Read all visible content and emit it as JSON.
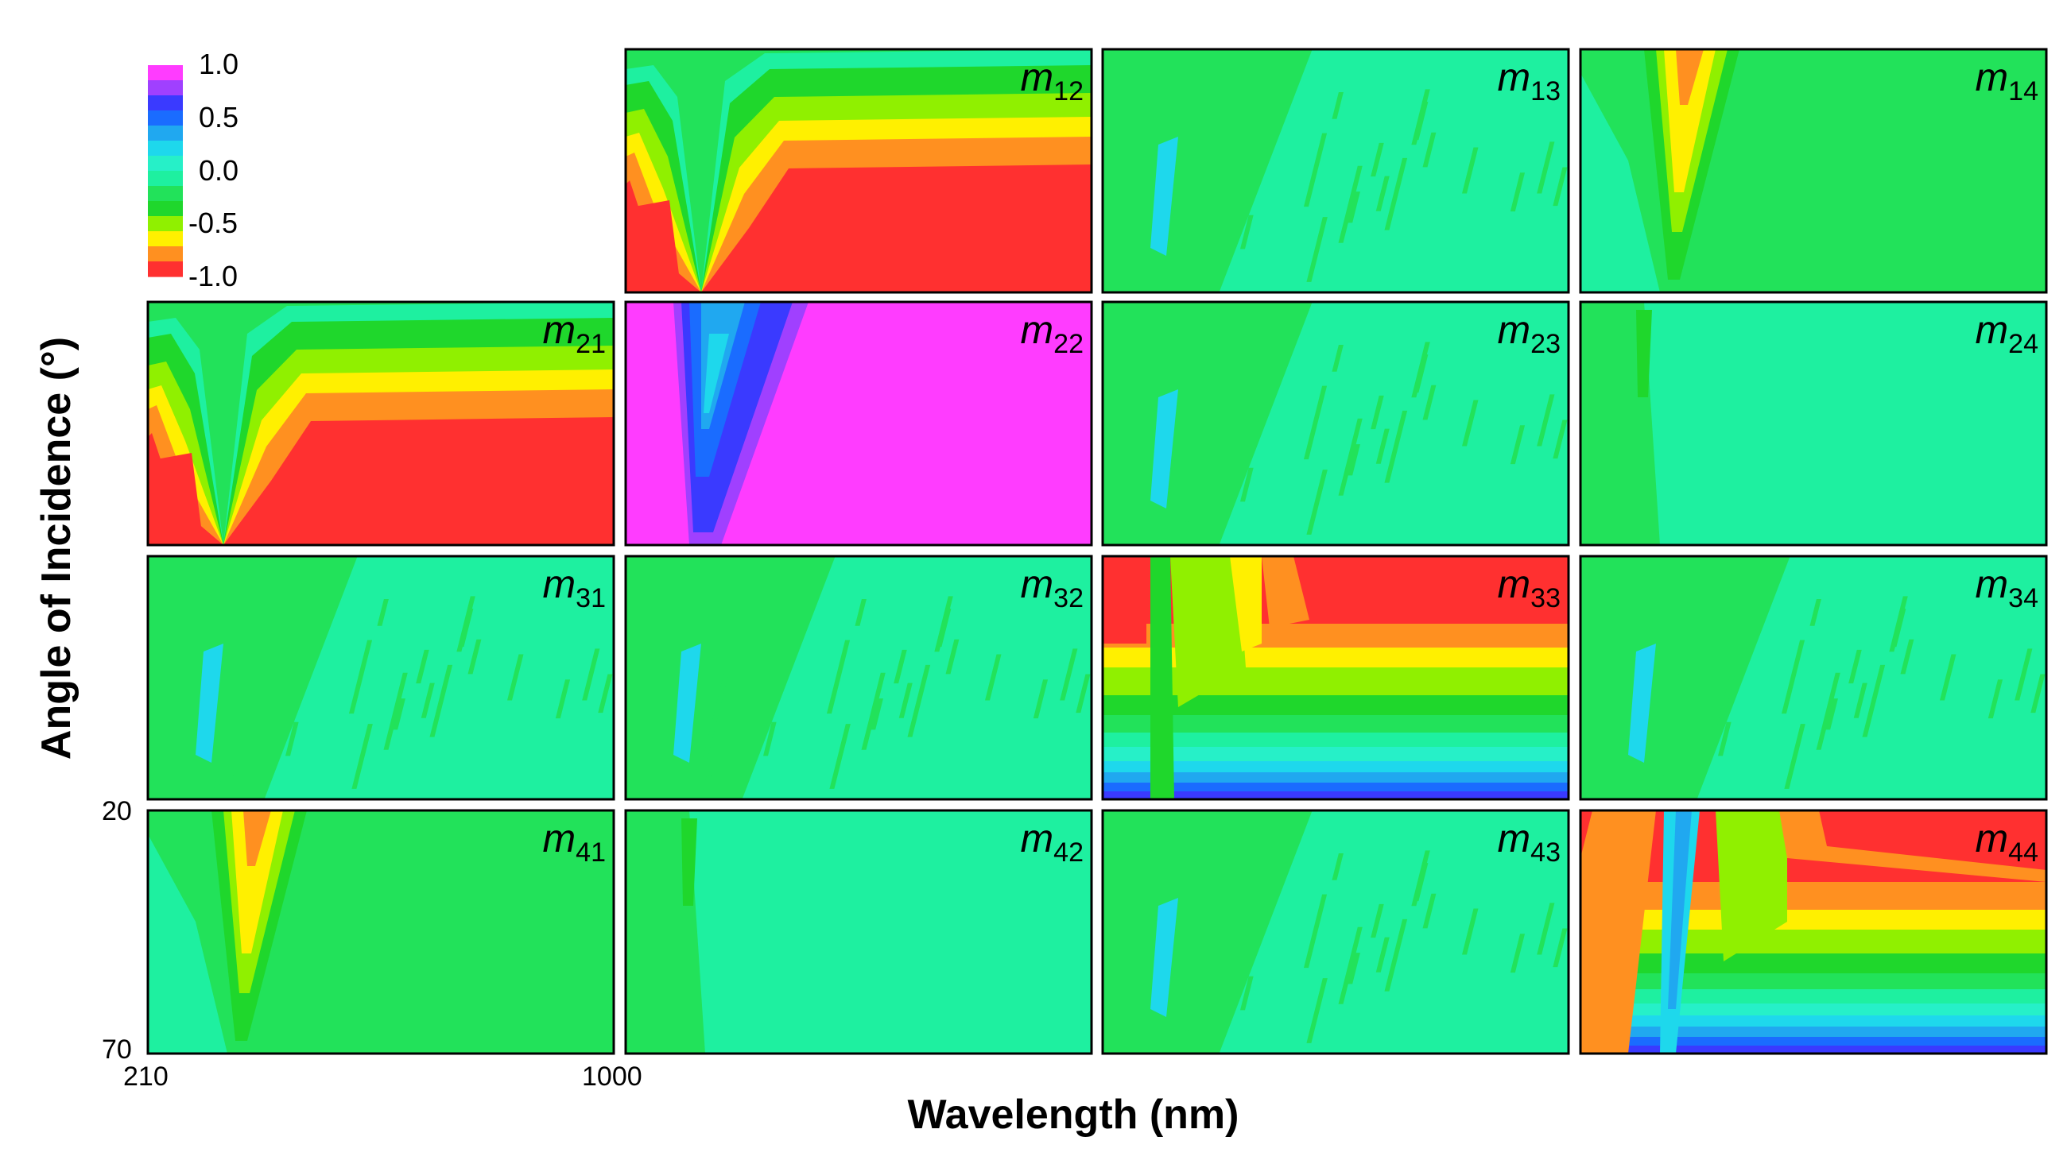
{
  "chart_data": {
    "type": "heatmap",
    "title": "",
    "xlabel": "Wavelength (nm)",
    "ylabel": "Angle of Incidence (°)",
    "xlim": [
      210,
      1000
    ],
    "ylim": [
      20,
      70
    ],
    "x_tick_labels": [
      "210",
      "1000"
    ],
    "y_tick_labels": [
      "20",
      "70"
    ],
    "colorbar": {
      "ticks": [
        "1.0",
        "0.5",
        "0.0",
        "-0.5",
        "-1.0"
      ],
      "levels": [
        {
          "value": 1.0,
          "color": "#ff3cff"
        },
        {
          "value": 0.875,
          "color": "#a040ff"
        },
        {
          "value": 0.75,
          "color": "#3a3aff"
        },
        {
          "value": 0.625,
          "color": "#1a6cff"
        },
        {
          "value": 0.5,
          "color": "#20a8f0"
        },
        {
          "value": 0.375,
          "color": "#1ed8ec"
        },
        {
          "value": 0.25,
          "color": "#26f0c8"
        },
        {
          "value": 0.125,
          "color": "#1ef0a0"
        },
        {
          "value": 0.0,
          "color": "#22e25a"
        },
        {
          "value": -0.125,
          "color": "#1fd72c"
        },
        {
          "value": -0.25,
          "color": "#90f000"
        },
        {
          "value": -0.5,
          "color": "#fff000"
        },
        {
          "value": -0.75,
          "color": "#ff9020"
        },
        {
          "value": -1.0,
          "color": "#ff3030"
        }
      ]
    },
    "panels": [
      {
        "row": 1,
        "col": 2,
        "base": "m",
        "sub": "12",
        "pattern": "diag"
      },
      {
        "row": 1,
        "col": 3,
        "base": "m",
        "sub": "13",
        "pattern": "cross"
      },
      {
        "row": 1,
        "col": 4,
        "base": "m",
        "sub": "14",
        "pattern": "offdiag_plume"
      },
      {
        "row": 2,
        "col": 1,
        "base": "m",
        "sub": "21",
        "pattern": "diag"
      },
      {
        "row": 2,
        "col": 2,
        "base": "m",
        "sub": "22",
        "pattern": "m22"
      },
      {
        "row": 2,
        "col": 3,
        "base": "m",
        "sub": "23",
        "pattern": "cross"
      },
      {
        "row": 2,
        "col": 4,
        "base": "m",
        "sub": "24",
        "pattern": "cross_green_left"
      },
      {
        "row": 3,
        "col": 1,
        "base": "m",
        "sub": "31",
        "pattern": "cross"
      },
      {
        "row": 3,
        "col": 2,
        "base": "m",
        "sub": "32",
        "pattern": "cross"
      },
      {
        "row": 3,
        "col": 3,
        "base": "m",
        "sub": "33",
        "pattern": "m33"
      },
      {
        "row": 3,
        "col": 4,
        "base": "m",
        "sub": "34",
        "pattern": "cross"
      },
      {
        "row": 4,
        "col": 1,
        "base": "m",
        "sub": "41",
        "pattern": "offdiag_plume"
      },
      {
        "row": 4,
        "col": 2,
        "base": "m",
        "sub": "42",
        "pattern": "cross_green_left"
      },
      {
        "row": 4,
        "col": 3,
        "base": "m",
        "sub": "43",
        "pattern": "cross"
      },
      {
        "row": 4,
        "col": 4,
        "base": "m",
        "sub": "44",
        "pattern": "m44"
      }
    ]
  }
}
